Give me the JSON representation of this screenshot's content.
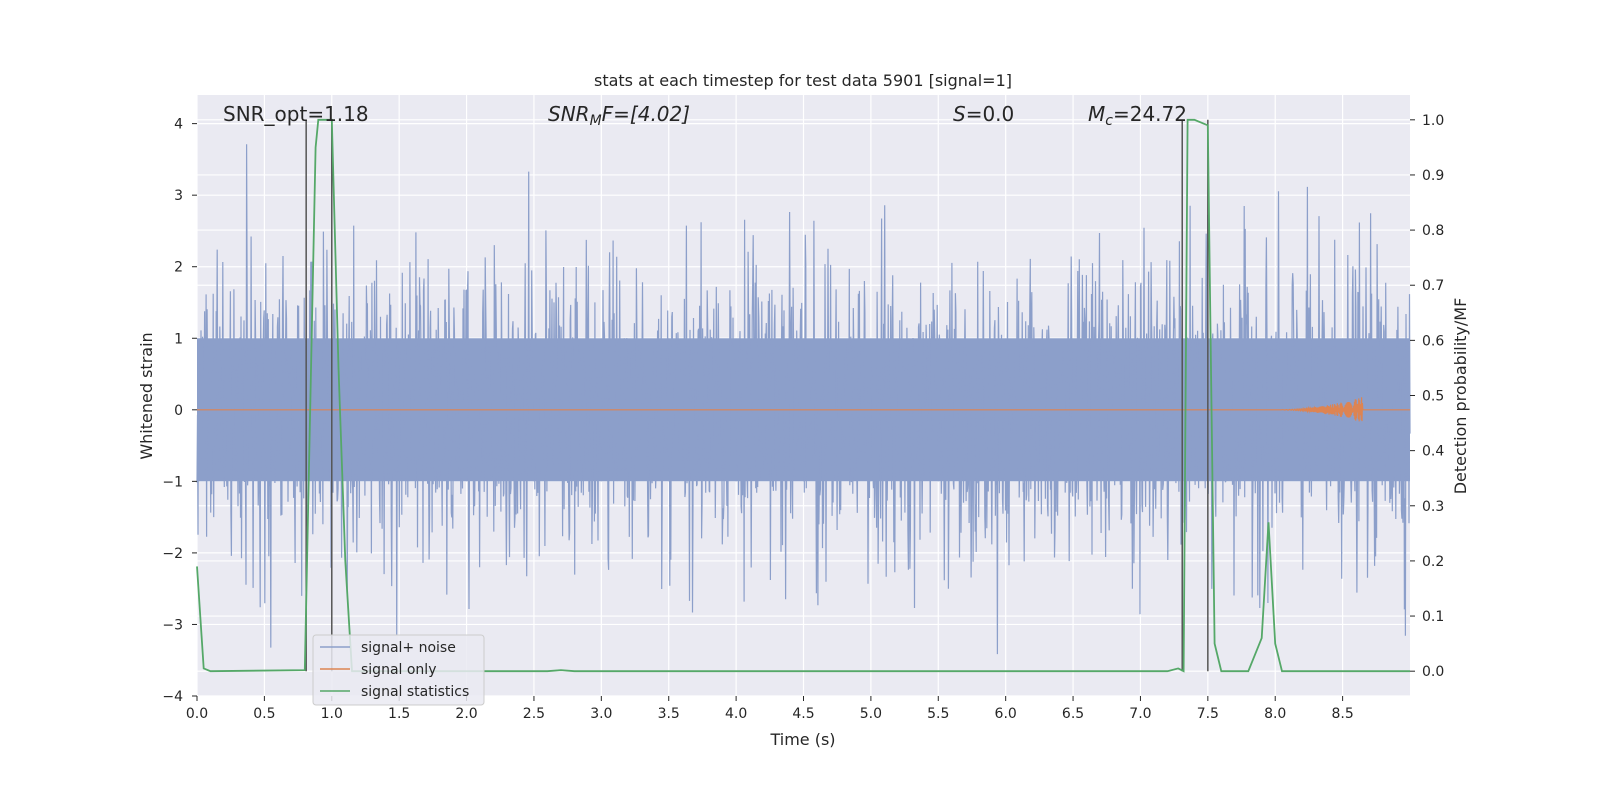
{
  "chart_data": {
    "type": "line",
    "title": "stats at each timestep for test data 5901 [signal=1]",
    "xlabel": "Time (s)",
    "ylabel_left": "Whitened strain",
    "ylabel_right": "Detection probability/MF",
    "xlim": [
      0.0,
      9.0
    ],
    "ylim_left": [
      -4.0,
      4.4
    ],
    "ylim_right": [
      -0.045,
      1.045
    ],
    "x_ticks": [
      "0.0",
      "0.5",
      "1.0",
      "1.5",
      "2.0",
      "2.5",
      "3.0",
      "3.5",
      "4.0",
      "4.5",
      "5.0",
      "5.5",
      "6.0",
      "6.5",
      "7.0",
      "7.5",
      "8.0",
      "8.5"
    ],
    "y_ticks_left": [
      "−4",
      "−3",
      "−2",
      "−1",
      "0",
      "1",
      "2",
      "3",
      "4"
    ],
    "y_ticks_right": [
      "0.0",
      "0.1",
      "0.2",
      "0.3",
      "0.4",
      "0.5",
      "0.6",
      "0.7",
      "0.8",
      "0.9",
      "1.0"
    ],
    "grid": true,
    "legend": {
      "placement": "lower-left",
      "entries": [
        {
          "label": "signal+ noise",
          "color": "#8c9fca"
        },
        {
          "label": "signal only",
          "color": "#dd8452"
        },
        {
          "label": "signal statistics",
          "color": "#55a868"
        }
      ]
    },
    "annotations": {
      "snr_opt": "SNR_opt=1.18",
      "snr_mf_base": "SNR",
      "snr_mf_sub": "M",
      "snr_mf_rest": "F=[4.02]",
      "s_var": "S",
      "s_rest": "=0.0",
      "mc_base": "M",
      "mc_sub": "c",
      "mc_rest": "=24.72"
    },
    "vertical_markers_s": [
      0.81,
      1.0,
      7.31,
      7.5
    ],
    "signal_statistics": {
      "x": [
        0.0,
        0.05,
        0.1,
        0.8,
        0.85,
        0.88,
        0.9,
        1.0,
        1.05,
        1.1,
        1.15,
        2.6,
        2.7,
        2.8,
        7.2,
        7.28,
        7.32,
        7.35,
        7.4,
        7.5,
        7.55,
        7.6,
        7.7,
        7.8,
        7.9,
        7.95,
        8.0,
        8.05,
        8.1,
        9.0
      ],
      "y": [
        0.19,
        0.005,
        0.0,
        0.002,
        0.6,
        0.95,
        1.0,
        1.0,
        0.55,
        0.2,
        0.0,
        0.0,
        0.002,
        0.0,
        0.0,
        0.005,
        0.0,
        1.0,
        1.0,
        0.99,
        0.05,
        0.0,
        0.0,
        0.0,
        0.06,
        0.27,
        0.05,
        0.0,
        0.0,
        0.0
      ]
    },
    "signal_only": {
      "chirp_start_s": 8.0,
      "merger_s": 8.65,
      "peak_strain": 0.18
    }
  }
}
